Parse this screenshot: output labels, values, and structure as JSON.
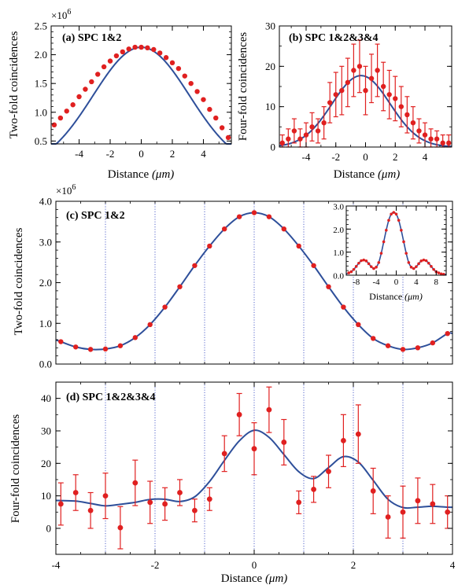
{
  "colors": {
    "fit": "#2e4f9a",
    "points": "#e02020",
    "guide": "#2a3fbf",
    "axis": "#000000"
  },
  "chart_data": [
    {
      "id": "a",
      "type": "scatter",
      "panel_label": "(a) SPC 1&2",
      "xlabel_text": "Distance",
      "xlabel_unit": "(μm)",
      "ylabel": "Two-fold coincidences",
      "multiplier": "×10",
      "multiplier_exp": "6",
      "xlim": [
        -5.8,
        5.8
      ],
      "ylim": [
        0.45,
        2.5
      ],
      "xticks": [
        -4,
        -2,
        0,
        2,
        4
      ],
      "yticks": [
        0.5,
        1.0,
        1.5,
        2.0,
        2.5
      ],
      "ytick_labels": [
        "0.5",
        "1.0",
        "1.5",
        "2.0",
        "2.5"
      ],
      "x": [
        -5.6,
        -5.2,
        -4.8,
        -4.4,
        -4.0,
        -3.6,
        -3.2,
        -2.8,
        -2.4,
        -2.0,
        -1.6,
        -1.2,
        -0.8,
        -0.4,
        0.0,
        0.4,
        0.8,
        1.2,
        1.6,
        2.0,
        2.4,
        2.8,
        3.2,
        3.6,
        4.0,
        4.4,
        4.8,
        5.2,
        5.6
      ],
      "y": [
        0.78,
        0.9,
        1.02,
        1.13,
        1.27,
        1.4,
        1.53,
        1.66,
        1.79,
        1.89,
        1.98,
        2.05,
        2.1,
        2.13,
        2.13,
        2.12,
        2.09,
        2.03,
        1.95,
        1.86,
        1.76,
        1.63,
        1.5,
        1.36,
        1.22,
        1.05,
        0.9,
        0.73,
        0.56
      ],
      "fit": {
        "x0": 0.0,
        "amplitude": 2.13,
        "sigma": 3.1
      }
    },
    {
      "id": "b",
      "type": "scatter",
      "panel_label": "(b) SPC 1&2&3&4",
      "xlabel_text": "Distance",
      "xlabel_unit": "(μm)",
      "ylabel": "Four-fold coincidences",
      "xlim": [
        -5.8,
        5.8
      ],
      "ylim": [
        0,
        30
      ],
      "xticks": [
        -4,
        -2,
        0,
        2,
        4
      ],
      "yticks": [
        0,
        10,
        20,
        30
      ],
      "ytick_labels": [
        "0",
        "10",
        "20",
        "30"
      ],
      "x": [
        -5.6,
        -5.2,
        -4.8,
        -4.4,
        -4.0,
        -3.6,
        -3.2,
        -2.8,
        -2.4,
        -2.0,
        -1.6,
        -1.2,
        -0.8,
        -0.4,
        0.0,
        0.4,
        0.8,
        1.2,
        1.6,
        2.0,
        2.4,
        2.8,
        3.2,
        3.6,
        4.0,
        4.4,
        4.8,
        5.2,
        5.6
      ],
      "y": [
        1,
        2,
        4,
        2,
        3,
        5,
        4,
        6,
        11,
        13,
        14,
        16,
        19,
        20,
        14,
        17,
        19,
        15,
        13,
        12,
        10,
        8,
        6,
        4,
        3,
        2,
        2,
        1,
        1
      ],
      "err": [
        2,
        2.5,
        3,
        2.5,
        3,
        3.5,
        3,
        4,
        5,
        5.5,
        6,
        6,
        6.5,
        6.5,
        6,
        6,
        6.5,
        6,
        6,
        5.5,
        5,
        4.5,
        4,
        3,
        3,
        2.5,
        2,
        2,
        2
      ],
      "fit": {
        "x0": -0.3,
        "amplitude": 17.7,
        "sigma": 1.95
      }
    },
    {
      "id": "c",
      "type": "scatter",
      "panel_label": "(c) SPC 1&2",
      "ylabel": "Two-fold coincidences",
      "multiplier": "×10",
      "multiplier_exp": "6",
      "xlim": [
        -4,
        4
      ],
      "ylim": [
        0,
        4.0
      ],
      "yticks": [
        0,
        1.0,
        2.0,
        3.0,
        4.0
      ],
      "ytick_labels": [
        "0.0",
        "1.0",
        "2.0",
        "3.0",
        "4.0"
      ],
      "guides": [
        -3,
        -2,
        -1,
        0,
        1,
        2,
        3
      ],
      "x": [
        -3.9,
        -3.6,
        -3.3,
        -3.0,
        -2.7,
        -2.4,
        -2.1,
        -1.8,
        -1.5,
        -1.2,
        -0.9,
        -0.6,
        -0.3,
        0.0,
        0.3,
        0.6,
        0.9,
        1.2,
        1.5,
        1.8,
        2.1,
        2.4,
        2.7,
        3.0,
        3.3,
        3.6,
        3.9
      ],
      "y": [
        0.55,
        0.42,
        0.36,
        0.37,
        0.45,
        0.65,
        0.97,
        1.4,
        1.9,
        2.42,
        2.9,
        3.32,
        3.62,
        3.72,
        3.62,
        3.32,
        2.9,
        2.42,
        1.9,
        1.4,
        0.97,
        0.63,
        0.45,
        0.36,
        0.4,
        0.52,
        0.75
      ]
    },
    {
      "id": "c-inset",
      "type": "scatter",
      "xlabel_text": "Distance",
      "xlabel_unit": "(μm)",
      "xlim": [
        -10,
        10
      ],
      "ylim": [
        0,
        3.0
      ],
      "xticks": [
        -8,
        -4,
        0,
        4,
        8
      ],
      "yticks": [
        0,
        1.0,
        2.0,
        3.0
      ],
      "ytick_labels": [
        "0.0",
        "1.0",
        "2.0",
        "3.0"
      ],
      "x": [
        -9.5,
        -9.0,
        -8.5,
        -8.0,
        -7.5,
        -7.0,
        -6.5,
        -6.0,
        -5.5,
        -5.0,
        -4.5,
        -4.0,
        -3.5,
        -3.0,
        -2.5,
        -2.0,
        -1.5,
        -1.0,
        -0.5,
        0.0,
        0.5,
        1.0,
        1.5,
        2.0,
        2.5,
        3.0,
        3.5,
        4.0,
        4.5,
        5.0,
        5.5,
        6.0,
        6.5,
        7.0,
        7.5,
        8.0,
        8.5,
        9.0,
        9.5
      ],
      "y": [
        0.1,
        0.15,
        0.25,
        0.38,
        0.52,
        0.63,
        0.66,
        0.62,
        0.5,
        0.37,
        0.29,
        0.35,
        0.55,
        0.95,
        1.45,
        1.95,
        2.38,
        2.65,
        2.72,
        2.65,
        2.38,
        1.95,
        1.45,
        0.95,
        0.55,
        0.35,
        0.29,
        0.37,
        0.5,
        0.62,
        0.66,
        0.63,
        0.52,
        0.38,
        0.25,
        0.15,
        0.1,
        0.06,
        0.04
      ]
    },
    {
      "id": "d",
      "type": "scatter",
      "panel_label": "(d) SPC 1&2&3&4",
      "xlabel_text": "Distance",
      "xlabel_unit": "(μm)",
      "ylabel": "Four-fold coincidences",
      "xlim": [
        -4,
        4
      ],
      "ylim": [
        -8,
        45
      ],
      "xticks": [
        -4,
        -2,
        0,
        2,
        4
      ],
      "yticks": [
        0,
        10,
        20,
        30,
        40
      ],
      "ytick_labels": [
        "0",
        "10",
        "20",
        "30",
        "40"
      ],
      "guides": [
        -3,
        -2,
        -1,
        0,
        1,
        2,
        3
      ],
      "x": [
        -3.9,
        -3.6,
        -3.3,
        -3.0,
        -2.7,
        -2.4,
        -2.1,
        -1.8,
        -1.5,
        -1.2,
        -0.9,
        -0.6,
        -0.3,
        0.0,
        0.3,
        0.6,
        0.9,
        1.2,
        1.5,
        1.8,
        2.1,
        2.4,
        2.7,
        3.0,
        3.3,
        3.6,
        3.9
      ],
      "y": [
        7.5,
        11,
        5.5,
        10,
        0.2,
        14,
        8,
        7.5,
        11,
        5.5,
        9,
        23,
        35,
        24.5,
        36.5,
        26.5,
        8,
        12,
        17.5,
        27,
        29,
        11.5,
        3.5,
        5,
        8.5,
        7.5,
        5
      ],
      "err": [
        6.5,
        5.5,
        5.5,
        7,
        6.5,
        7,
        6.5,
        5,
        4,
        3.5,
        3.5,
        5.5,
        6.5,
        8,
        7,
        7,
        3.5,
        4,
        5,
        8,
        9,
        7,
        6.5,
        8,
        7,
        6,
        5
      ]
    }
  ]
}
